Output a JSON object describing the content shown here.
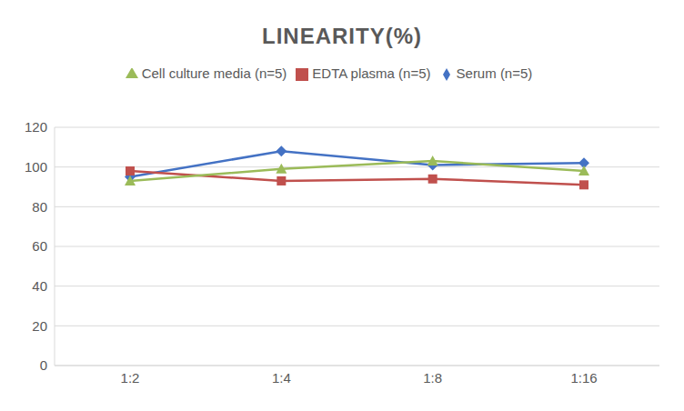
{
  "chart_data": {
    "type": "line",
    "title": "LINEARITY(%)",
    "categories": [
      "1:2",
      "1:4",
      "1:8",
      "1:16"
    ],
    "series": [
      {
        "name": "Serum (n=5)",
        "color": "#4472c4",
        "marker": "diamond",
        "values": [
          95,
          108,
          101,
          102
        ]
      },
      {
        "name": "EDTA plasma (n=5)",
        "color": "#c0504d",
        "marker": "square",
        "values": [
          98,
          93,
          94,
          91
        ]
      },
      {
        "name": "Cell culture media (n=5)",
        "color": "#9bbb59",
        "marker": "triangle",
        "values": [
          93,
          99,
          103,
          98
        ]
      }
    ],
    "ylim": [
      0,
      120
    ],
    "yticks": [
      0,
      20,
      40,
      60,
      80,
      100,
      120
    ],
    "grid": true,
    "legend": "top"
  }
}
